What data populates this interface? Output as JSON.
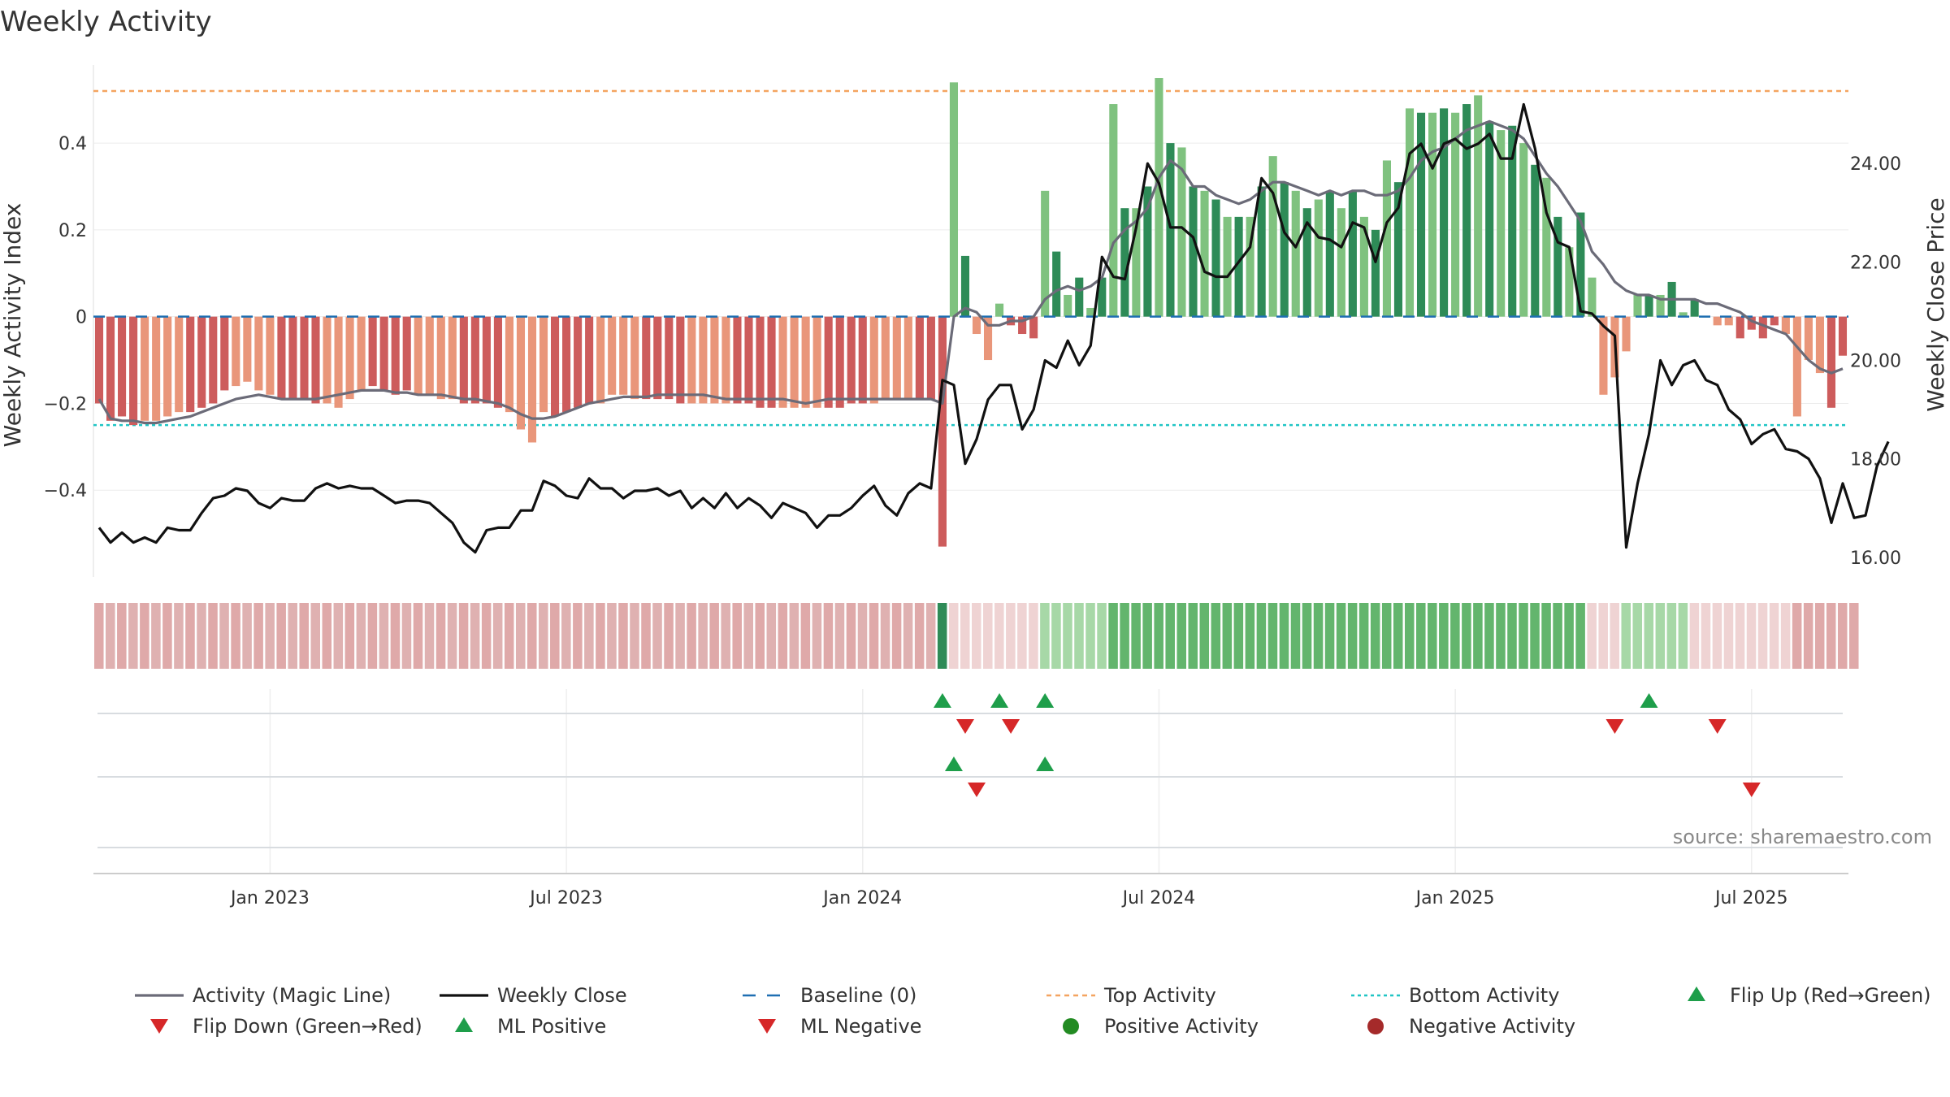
{
  "chart_data": {
    "type": "bar",
    "title": "Weekly Activity",
    "ylabel": "Weekly Activity Index",
    "y2label": "Weekly Close Price",
    "source": "source: sharemaestro.com",
    "ylim": [
      -0.6,
      0.58
    ],
    "y2lim": [
      15.6,
      26.0
    ],
    "yticks": [
      {
        "v": 0.4,
        "label": "0.4"
      },
      {
        "v": 0.2,
        "label": "0.2"
      },
      {
        "v": 0,
        "label": "0"
      },
      {
        "v": -0.2,
        "label": "−0.2"
      },
      {
        "v": -0.4,
        "label": "−0.4"
      }
    ],
    "y2ticks": [
      {
        "v": 24,
        "label": "24.00"
      },
      {
        "v": 22,
        "label": "22.00"
      },
      {
        "v": 20,
        "label": "20.00"
      },
      {
        "v": 18,
        "label": "18.00"
      },
      {
        "v": 16,
        "label": "16.00"
      }
    ],
    "xticks": [
      {
        "week": 15,
        "label": "Jan 2023"
      },
      {
        "week": 41,
        "label": "Jul 2023"
      },
      {
        "week": 67,
        "label": "Jan 2024"
      },
      {
        "week": 93,
        "label": "Jul 2024"
      },
      {
        "week": 119,
        "label": "Jan 2025"
      },
      {
        "week": 145,
        "label": "Jul 2025"
      }
    ],
    "top_activity": 0.52,
    "bottom_activity": -0.25,
    "colors": {
      "strong_green": "#2e8b57",
      "light_green": "#7fc27f",
      "strong_red": "#cd5c5c",
      "light_red": "#e9967a",
      "magic_line": "#6b6b78",
      "close": "#111111",
      "baseline": "#1f6fb2",
      "top": "#f4a460",
      "bottom": "#20c5c5",
      "flip_up": "#1e9e4a",
      "flip_down": "#d62728",
      "pos_dot": "#228b22",
      "neg_dot": "#a52a2a"
    },
    "bars": [
      -0.2,
      -0.24,
      -0.23,
      -0.25,
      -0.24,
      -0.24,
      -0.23,
      -0.22,
      -0.22,
      -0.21,
      -0.2,
      -0.17,
      -0.16,
      -0.15,
      -0.17,
      -0.18,
      -0.19,
      -0.19,
      -0.19,
      -0.2,
      -0.2,
      -0.21,
      -0.19,
      -0.17,
      -0.16,
      -0.17,
      -0.18,
      -0.17,
      -0.18,
      -0.18,
      -0.19,
      -0.19,
      -0.2,
      -0.2,
      -0.2,
      -0.21,
      -0.22,
      -0.26,
      -0.29,
      -0.22,
      -0.23,
      -0.22,
      -0.21,
      -0.2,
      -0.2,
      -0.18,
      -0.18,
      -0.19,
      -0.19,
      -0.19,
      -0.19,
      -0.2,
      -0.2,
      -0.2,
      -0.2,
      -0.2,
      -0.2,
      -0.2,
      -0.21,
      -0.21,
      -0.21,
      -0.21,
      -0.21,
      -0.21,
      -0.21,
      -0.21,
      -0.2,
      -0.2,
      -0.2,
      -0.19,
      -0.19,
      -0.19,
      -0.19,
      -0.19,
      -0.53,
      0.54,
      0.14,
      -0.04,
      -0.1,
      0.03,
      -0.02,
      -0.04,
      -0.05,
      0.29,
      0.15,
      0.05,
      0.09,
      0.02,
      0.09,
      0.49,
      0.25,
      0.25,
      0.3,
      0.55,
      0.4,
      0.39,
      0.3,
      0.29,
      0.27,
      0.23,
      0.23,
      0.23,
      0.3,
      0.37,
      0.31,
      0.29,
      0.25,
      0.27,
      0.29,
      0.25,
      0.29,
      0.23,
      0.2,
      0.36,
      0.31,
      0.48,
      0.47,
      0.47,
      0.48,
      0.47,
      0.49,
      0.51,
      0.45,
      0.43,
      0.44,
      0.4,
      0.35,
      0.32,
      0.23,
      0.16,
      0.24,
      0.09,
      -0.18,
      -0.14,
      -0.08,
      0.05,
      0.05,
      0.05,
      0.08,
      0.01,
      0.04,
      0.0,
      -0.02,
      -0.02,
      -0.05,
      -0.03,
      -0.05,
      -0.02,
      -0.04,
      -0.23,
      -0.1,
      -0.13,
      -0.21,
      -0.09
    ],
    "magic_line": [
      -0.19,
      -0.235,
      -0.24,
      -0.24,
      -0.245,
      -0.245,
      -0.24,
      -0.235,
      -0.23,
      -0.22,
      -0.21,
      -0.2,
      -0.19,
      -0.185,
      -0.18,
      -0.185,
      -0.19,
      -0.19,
      -0.19,
      -0.19,
      -0.185,
      -0.18,
      -0.175,
      -0.17,
      -0.17,
      -0.17,
      -0.175,
      -0.175,
      -0.18,
      -0.18,
      -0.18,
      -0.185,
      -0.19,
      -0.19,
      -0.195,
      -0.2,
      -0.21,
      -0.225,
      -0.235,
      -0.235,
      -0.23,
      -0.22,
      -0.21,
      -0.2,
      -0.195,
      -0.19,
      -0.185,
      -0.185,
      -0.185,
      -0.18,
      -0.18,
      -0.18,
      -0.18,
      -0.18,
      -0.185,
      -0.19,
      -0.19,
      -0.19,
      -0.19,
      -0.19,
      -0.19,
      -0.195,
      -0.2,
      -0.195,
      -0.19,
      -0.19,
      -0.19,
      -0.19,
      -0.19,
      -0.19,
      -0.19,
      -0.19,
      -0.19,
      -0.19,
      -0.2,
      0.0,
      0.02,
      0.01,
      -0.02,
      -0.02,
      -0.01,
      -0.01,
      0.0,
      0.04,
      0.06,
      0.07,
      0.06,
      0.07,
      0.09,
      0.17,
      0.2,
      0.22,
      0.25,
      0.32,
      0.36,
      0.34,
      0.3,
      0.3,
      0.28,
      0.27,
      0.26,
      0.27,
      0.29,
      0.31,
      0.31,
      0.3,
      0.29,
      0.28,
      0.29,
      0.28,
      0.29,
      0.29,
      0.28,
      0.28,
      0.29,
      0.32,
      0.36,
      0.38,
      0.39,
      0.41,
      0.43,
      0.44,
      0.45,
      0.44,
      0.43,
      0.41,
      0.37,
      0.33,
      0.3,
      0.26,
      0.22,
      0.15,
      0.12,
      0.08,
      0.06,
      0.05,
      0.05,
      0.04,
      0.04,
      0.04,
      0.04,
      0.03,
      0.03,
      0.02,
      0.01,
      -0.01,
      -0.02,
      -0.03,
      -0.04,
      -0.07,
      -0.1,
      -0.12,
      -0.13,
      -0.12
    ],
    "close": [
      16.6,
      16.3,
      16.5,
      16.3,
      16.4,
      16.3,
      16.6,
      16.55,
      16.55,
      16.9,
      17.2,
      17.25,
      17.4,
      17.35,
      17.1,
      17.0,
      17.2,
      17.15,
      17.15,
      17.4,
      17.5,
      17.4,
      17.45,
      17.4,
      17.4,
      17.25,
      17.1,
      17.15,
      17.15,
      17.1,
      16.9,
      16.7,
      16.3,
      16.1,
      16.55,
      16.6,
      16.6,
      16.95,
      16.95,
      17.55,
      17.45,
      17.25,
      17.2,
      17.6,
      17.4,
      17.4,
      17.2,
      17.35,
      17.35,
      17.4,
      17.25,
      17.35,
      17.0,
      17.2,
      17.0,
      17.3,
      17.0,
      17.2,
      17.05,
      16.8,
      17.1,
      17.0,
      16.9,
      16.6,
      16.85,
      16.85,
      17.0,
      17.25,
      17.45,
      17.05,
      16.85,
      17.3,
      17.5,
      17.4,
      19.6,
      19.5,
      17.9,
      18.4,
      19.2,
      19.5,
      19.5,
      18.6,
      19.0,
      20.0,
      19.85,
      20.4,
      19.9,
      20.3,
      22.1,
      21.7,
      21.65,
      22.7,
      24.0,
      23.6,
      22.7,
      22.7,
      22.5,
      21.8,
      21.7,
      21.7,
      22.0,
      22.3,
      23.7,
      23.4,
      22.6,
      22.3,
      22.8,
      22.5,
      22.45,
      22.3,
      22.8,
      22.7,
      22.0,
      22.8,
      23.1,
      24.2,
      24.4,
      23.9,
      24.4,
      24.5,
      24.3,
      24.4,
      24.6,
      24.1,
      24.1,
      25.2,
      24.3,
      23.0,
      22.4,
      22.3,
      21.0,
      20.95,
      20.7,
      20.5,
      16.2,
      17.5,
      18.5,
      20.0,
      19.5,
      19.9,
      20.0,
      19.6,
      19.5,
      19.0,
      18.8,
      18.3,
      18.5,
      18.6,
      18.2,
      18.15,
      18.0,
      17.6,
      16.7,
      17.5,
      16.8,
      16.85,
      17.85,
      18.35
    ],
    "strip_colors": [
      "#dfa9a9",
      "#dfb1b1",
      "#b55a5a",
      "#2e8b57",
      "#efd3d3",
      "#63b56d",
      "#a7d8a7",
      "#5cb06a"
    ],
    "strip_map": [
      0,
      1,
      0,
      1,
      0,
      1,
      0,
      1,
      0,
      1,
      0,
      1,
      0,
      1,
      0,
      1,
      0,
      1,
      0,
      1,
      0,
      1,
      0,
      1,
      0,
      1,
      0,
      1,
      0,
      1,
      0,
      1,
      0,
      1,
      0,
      1,
      0,
      1,
      0,
      1,
      0,
      1,
      0,
      1,
      0,
      1,
      0,
      1,
      0,
      1,
      0,
      1,
      0,
      1,
      0,
      1,
      0,
      1,
      0,
      1,
      0,
      1,
      0,
      1,
      0,
      1,
      0,
      1,
      0,
      1,
      0,
      1,
      0,
      1,
      3,
      4,
      4,
      4,
      4,
      4,
      4,
      4,
      4,
      6,
      6,
      6,
      6,
      6,
      6,
      5,
      5,
      5,
      5,
      5,
      5,
      5,
      5,
      5,
      5,
      5,
      5,
      5,
      5,
      5,
      5,
      5,
      5,
      5,
      5,
      5,
      5,
      5,
      5,
      5,
      5,
      5,
      5,
      5,
      5,
      5,
      5,
      5,
      5,
      5,
      5,
      5,
      5,
      5,
      5,
      5,
      5,
      4,
      4,
      4,
      6,
      6,
      6,
      6,
      6,
      6,
      4,
      4,
      4,
      4,
      4,
      4,
      4,
      4,
      4,
      0,
      0,
      0,
      0,
      0,
      0
    ],
    "markers": {
      "flip_up": [
        74,
        79,
        83,
        136
      ],
      "flip_down": [
        76,
        80,
        133,
        142
      ],
      "ml_positive": [
        75,
        83
      ],
      "ml_negative": [
        77,
        145
      ]
    },
    "legend": [
      {
        "key": "magic",
        "label": "Activity (Magic Line)"
      },
      {
        "key": "close",
        "label": "Weekly Close"
      },
      {
        "key": "baseline",
        "label": "Baseline (0)"
      },
      {
        "key": "top",
        "label": "Top Activity"
      },
      {
        "key": "bottom",
        "label": "Bottom Activity"
      },
      {
        "key": "flipup",
        "label": "Flip Up (Red→Green)"
      },
      {
        "key": "flipdown",
        "label": "Flip Down (Green→Red)"
      },
      {
        "key": "mlpos",
        "label": "ML Positive"
      },
      {
        "key": "mlneg",
        "label": "ML Negative"
      },
      {
        "key": "posact",
        "label": "Positive Activity"
      },
      {
        "key": "negact",
        "label": "Negative Activity"
      }
    ]
  }
}
